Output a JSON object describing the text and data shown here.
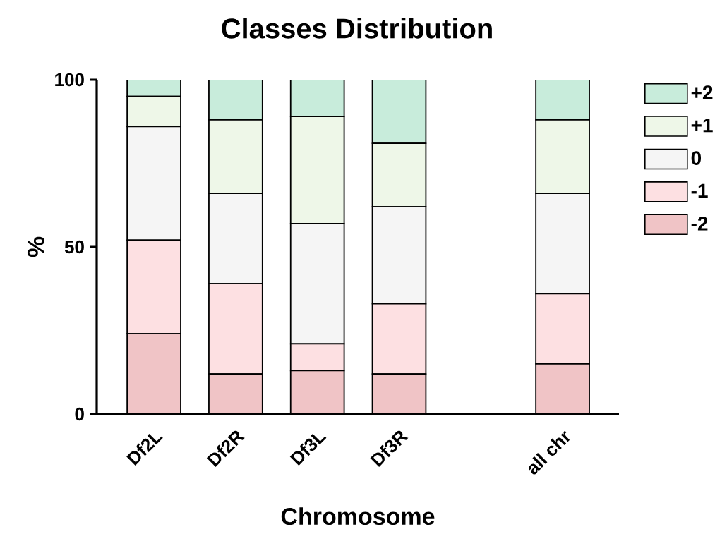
{
  "chart_data": {
    "type": "bar",
    "stacked": true,
    "title": "Classes Distribution",
    "xlabel": "Chromosome",
    "ylabel": "%",
    "categories": [
      "Df2L",
      "Df2R",
      "Df3L",
      "Df3R",
      null,
      "all chr"
    ],
    "series": [
      {
        "name": "-2",
        "color": "#f0c4c6",
        "values": [
          24,
          12,
          13,
          12,
          null,
          15
        ]
      },
      {
        "name": "-1",
        "color": "#fde0e2",
        "values": [
          28,
          27,
          8,
          21,
          null,
          21
        ]
      },
      {
        "name": "0",
        "color": "#f5f5f5",
        "values": [
          34,
          27,
          36,
          29,
          null,
          30
        ]
      },
      {
        "name": "+1",
        "color": "#eef7e8",
        "values": [
          9,
          22,
          32,
          19,
          null,
          22
        ]
      },
      {
        "name": "+2",
        "color": "#c8ecdb",
        "values": [
          5,
          12,
          11,
          19,
          null,
          12
        ]
      }
    ],
    "ylim": [
      0,
      100
    ],
    "yticks": [
      0,
      50,
      100
    ],
    "grid": false,
    "legend": "right"
  }
}
